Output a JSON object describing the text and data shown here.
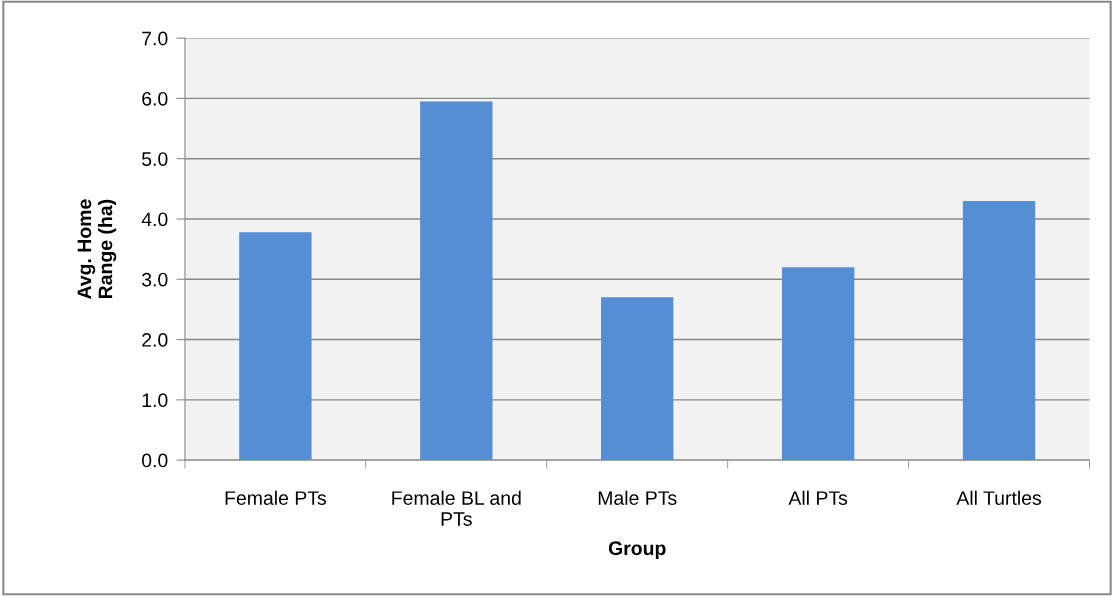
{
  "chart_data": {
    "type": "bar",
    "xlabel": "Group",
    "ylabel": "Avg. Home\nRange (ha)",
    "categories": [
      "Female PTs",
      "Female BL and\nPTs",
      "Male PTs",
      "All PTs",
      "All Turtles"
    ],
    "values": [
      3.78,
      5.95,
      2.7,
      3.2,
      4.3
    ],
    "color": "#558ed5",
    "ylim": [
      0,
      7
    ],
    "yticks": [
      {
        "value": 0,
        "label": "0.0"
      },
      {
        "value": 1,
        "label": "1.0"
      },
      {
        "value": 2,
        "label": "2.0"
      },
      {
        "value": 3,
        "label": "3.0"
      },
      {
        "value": 4,
        "label": "4.0"
      },
      {
        "value": 5,
        "label": "5.0"
      },
      {
        "value": 6,
        "label": "6.0"
      },
      {
        "value": 7,
        "label": "7.0"
      }
    ],
    "grid": "y",
    "legend": false
  }
}
